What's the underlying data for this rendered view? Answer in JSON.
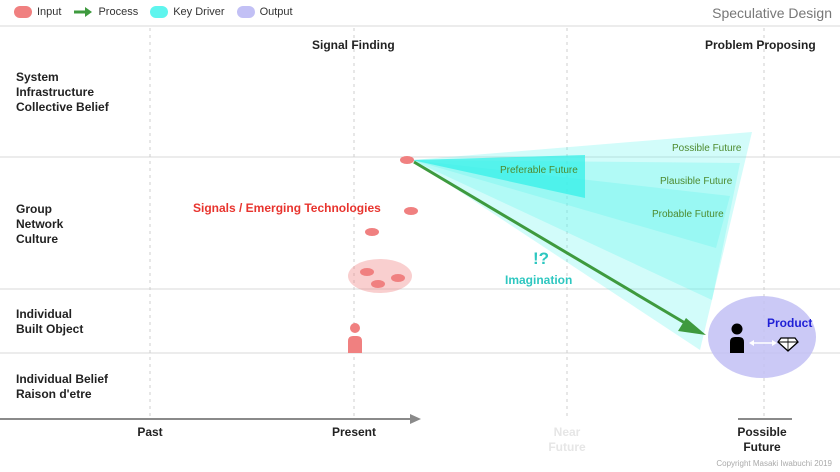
{
  "title": "Speculative Design",
  "legend": [
    {
      "label": "Input",
      "color": "#f08080"
    },
    {
      "label": "Process",
      "color": "#3e9a3e"
    },
    {
      "label": "Key Driver",
      "color": "#5ff5ee"
    },
    {
      "label": "Output",
      "color": "#c2c0f5"
    }
  ],
  "columns": {
    "signal_finding": "Signal Finding",
    "problem_proposing": "Problem Proposing"
  },
  "rows": {
    "system": [
      "System",
      "Infrastructure",
      "Collective Belief"
    ],
    "group": [
      "Group",
      "Network",
      "Culture"
    ],
    "individual": [
      "Individual",
      "Built Object"
    ],
    "belief": [
      "Individual Belief",
      "Raison d'etre"
    ]
  },
  "axis": {
    "past": "Past",
    "present": "Present",
    "near_future": [
      "Near",
      "Future"
    ],
    "possible_future": [
      "Possible",
      "Future"
    ]
  },
  "labels": {
    "signals": "Signals / Emerging Technologies",
    "imagination_symbol": "!?",
    "imagination": "Imagination",
    "preferable": "Preferable Future",
    "possible": "Possible Future",
    "plausible": "Plausible Future",
    "probable": "Probable Future",
    "product": "Product"
  },
  "copyright": "Copyright Masaki Iwabuchi 2019"
}
